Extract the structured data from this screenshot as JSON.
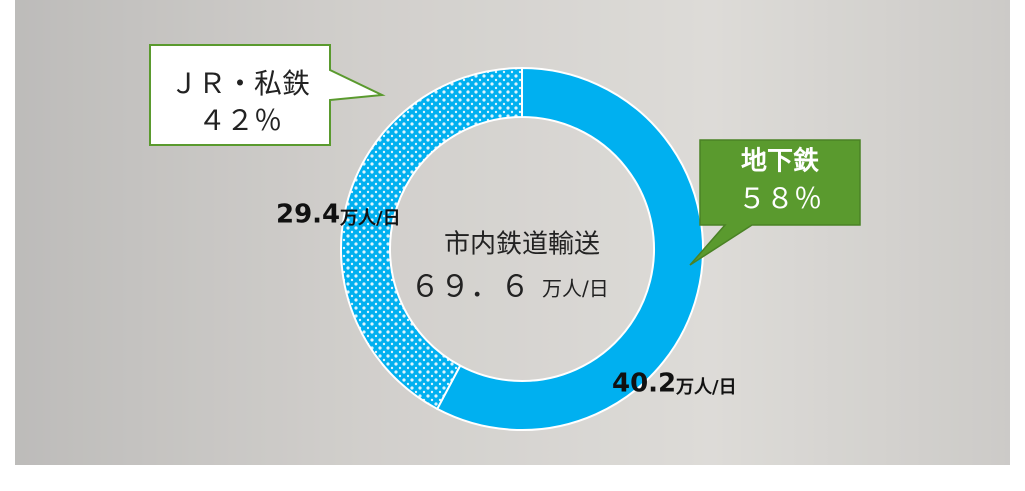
{
  "chart_data": {
    "type": "pie",
    "categories": [
      "地下鉄",
      "ＪＲ・私鉄"
    ],
    "values": [
      40.2,
      29.4
    ],
    "unit": "万人/日",
    "colors": [
      "#00b0f0",
      "#00b0f0"
    ],
    "percents": [
      {
        "value": 58,
        "label": "５８％"
      },
      {
        "value": 42,
        "label": "４２％"
      }
    ],
    "center_title": "市内鉄道輸送",
    "total": {
      "value": 69.6,
      "label": "６９．６"
    }
  }
}
